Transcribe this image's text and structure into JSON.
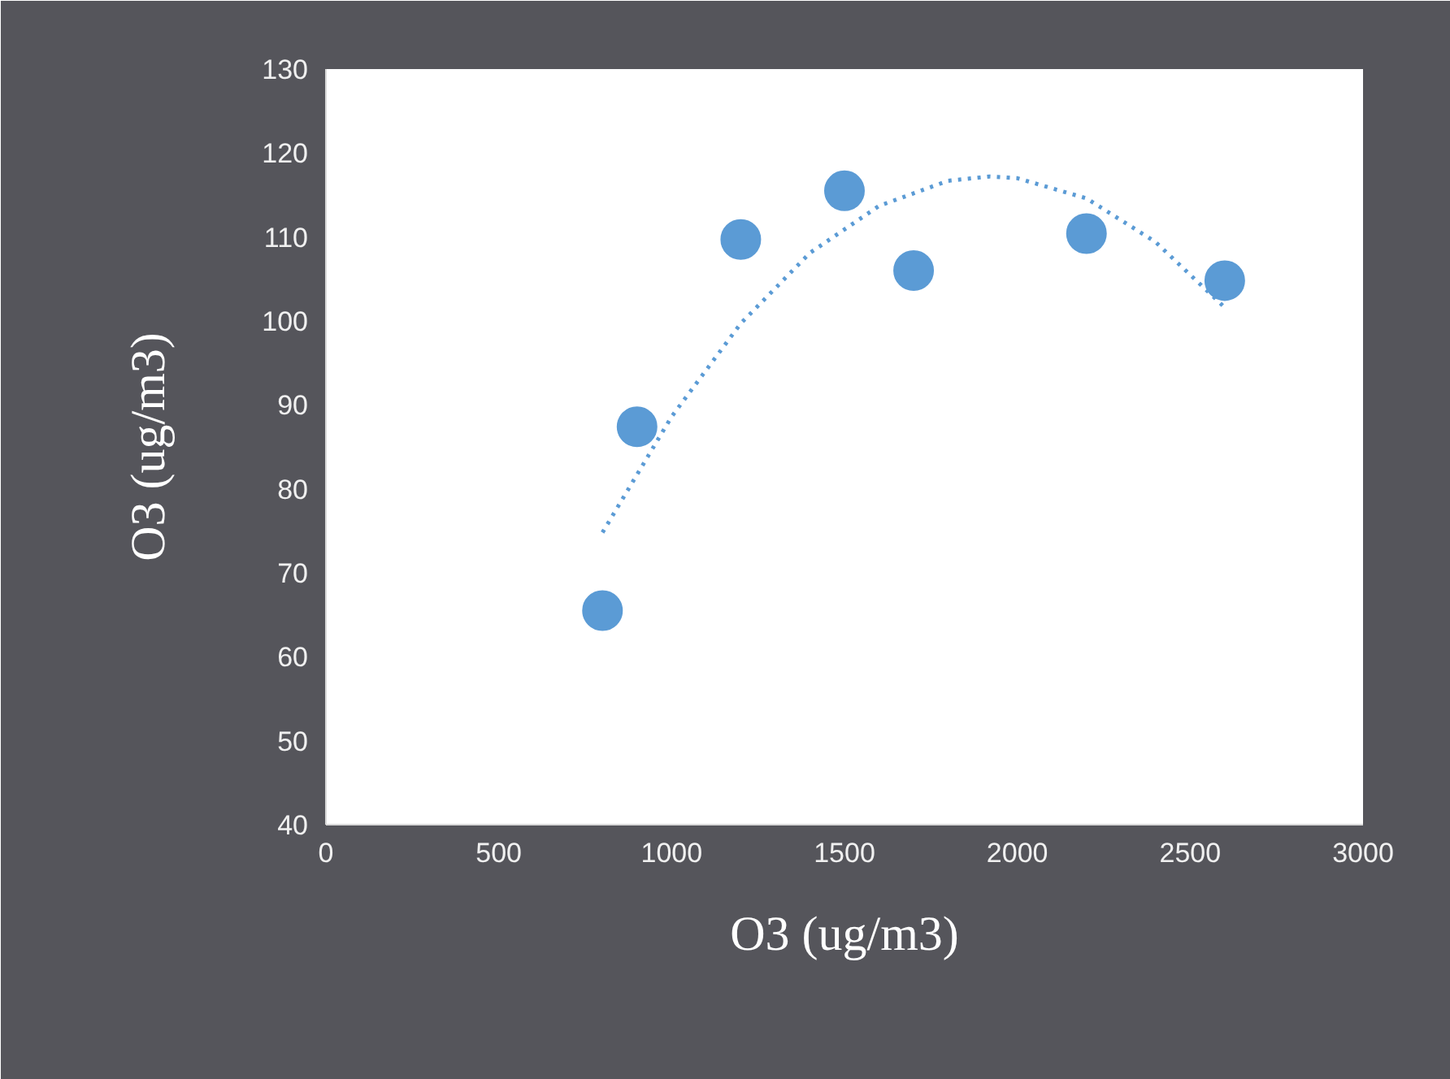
{
  "chart_data": {
    "type": "scatter",
    "xlabel": "O3 (ug/m3)",
    "ylabel": "O3 (ug/m3)",
    "xlim": [
      0,
      3000
    ],
    "xticks": [
      0,
      500,
      1000,
      1500,
      2000,
      2500,
      3000
    ],
    "ylim": [
      40,
      130
    ],
    "yticks": [
      40,
      50,
      60,
      70,
      80,
      90,
      100,
      110,
      120,
      130
    ],
    "grid": false,
    "series": [
      {
        "marker": "circle",
        "color": "#5b9bd5",
        "x": [
          800,
          900,
          1200,
          1500,
          1700,
          2200,
          2600
        ],
        "values": [
          65.5,
          87.4,
          109.7,
          115.5,
          106,
          110.4,
          104.8
        ]
      },
      {
        "type": "line",
        "marker": "none",
        "line_style": "dotted",
        "color": "#5b9bd5",
        "x": [
          800,
          1000,
          1200,
          1400,
          1600,
          1800,
          1920,
          2000,
          2200,
          2400,
          2600
        ],
        "values": [
          74.8,
          88.6,
          99.7,
          108.1,
          113.7,
          116.7,
          117.2,
          117.0,
          114.6,
          109.4,
          101.6
        ]
      }
    ]
  }
}
